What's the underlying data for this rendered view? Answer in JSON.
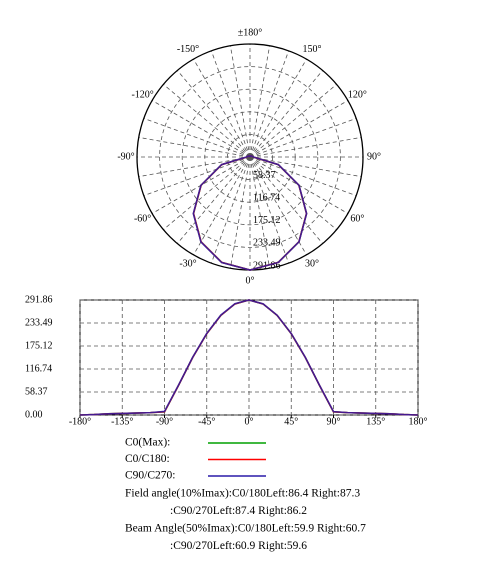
{
  "chart_data": [
    {
      "type": "polar",
      "angle_ticks": [
        {
          "value": 180,
          "label": "±180°"
        },
        {
          "value": 150,
          "label": "150°"
        },
        {
          "value": 120,
          "label": "120°"
        },
        {
          "value": 90,
          "label": "90°"
        },
        {
          "value": 60,
          "label": "60°"
        },
        {
          "value": 30,
          "label": "30°"
        },
        {
          "value": 0,
          "label": "0°"
        },
        {
          "value": -30,
          "label": "-30°"
        },
        {
          "value": -60,
          "label": "-60°"
        },
        {
          "value": -90,
          "label": "-90°"
        },
        {
          "value": -120,
          "label": "-120°"
        },
        {
          "value": -150,
          "label": "-150°"
        }
      ],
      "rlim": [
        0,
        291.86
      ],
      "rticks": [
        58.37,
        116.74,
        175.12,
        233.49,
        291.86
      ],
      "grid": true,
      "x": [
        -180,
        -165,
        -150,
        -135,
        -120,
        -105,
        -90,
        -75,
        -60,
        -45,
        -30,
        -15,
        0,
        15,
        30,
        45,
        60,
        75,
        90,
        105,
        120,
        135,
        150,
        165,
        180
      ],
      "series": [
        {
          "name": "C0(Max):",
          "color": "#00a000",
          "values": [
            0,
            1,
            3,
            4,
            5,
            6,
            8,
            75.5,
            145.9,
            206.4,
            252.8,
            281.9,
            291.86,
            281.9,
            252.8,
            206.4,
            145.9,
            75.5,
            8,
            6,
            5,
            4,
            3,
            1,
            0
          ]
        },
        {
          "name": "C0/C180:",
          "color": "#ff0000",
          "values": [
            0,
            1,
            3,
            4,
            5,
            6,
            8,
            75.5,
            145.9,
            206.4,
            252.8,
            281.9,
            291.86,
            281.9,
            252.8,
            206.4,
            145.9,
            75.5,
            8,
            6,
            5,
            4,
            3,
            1,
            0
          ]
        },
        {
          "name": "C90/C270:",
          "color": "#2a1aa8",
          "values": [
            0,
            1,
            3,
            4,
            5,
            6,
            9,
            76,
            146.5,
            207,
            253.5,
            282.3,
            291.86,
            282,
            253,
            206.8,
            146.2,
            75.8,
            8.5,
            6,
            5,
            4,
            3,
            1,
            0
          ]
        }
      ]
    },
    {
      "type": "line",
      "xlim": [
        -180,
        180
      ],
      "xticks": [
        {
          "value": -180,
          "label": "-180°"
        },
        {
          "value": -135,
          "label": "-135°"
        },
        {
          "value": -90,
          "label": "-90°"
        },
        {
          "value": -45,
          "label": "-45°"
        },
        {
          "value": 0,
          "label": "0°"
        },
        {
          "value": 45,
          "label": "45°"
        },
        {
          "value": 90,
          "label": "90°"
        },
        {
          "value": 135,
          "label": "135°"
        },
        {
          "value": 180,
          "label": "180°"
        }
      ],
      "ylim": [
        0,
        291.86
      ],
      "yticks": [
        {
          "value": 0,
          "label": "0.00"
        },
        58.37,
        116.74,
        175.12,
        233.49,
        291.86
      ],
      "grid": true,
      "x": [
        -180,
        -165,
        -150,
        -135,
        -120,
        -105,
        -90,
        -75,
        -60,
        -45,
        -30,
        -15,
        0,
        15,
        30,
        45,
        60,
        75,
        90,
        105,
        120,
        135,
        150,
        165,
        180
      ],
      "series": [
        {
          "name": "C0(Max):",
          "color": "#00a000",
          "values": [
            0,
            1,
            3,
            4,
            5,
            6,
            8,
            75.5,
            145.9,
            206.4,
            252.8,
            281.9,
            291.86,
            281.9,
            252.8,
            206.4,
            145.9,
            75.5,
            8,
            6,
            5,
            4,
            3,
            1,
            0
          ]
        },
        {
          "name": "C0/C180:",
          "color": "#ff0000",
          "values": [
            0,
            1,
            3,
            4,
            5,
            6,
            8,
            75.5,
            145.9,
            206.4,
            252.8,
            281.9,
            291.86,
            281.9,
            252.8,
            206.4,
            145.9,
            75.5,
            8,
            6,
            5,
            4,
            3,
            1,
            0
          ]
        },
        {
          "name": "C90/C270:",
          "color": "#2a1aa8",
          "values": [
            0,
            1,
            3,
            4,
            5,
            6,
            9,
            76,
            146.5,
            207,
            253.5,
            282.3,
            291.86,
            282,
            253,
            206.8,
            146.2,
            75.8,
            8.5,
            6,
            5,
            4,
            3,
            1,
            0
          ]
        }
      ],
      "annotations": [
        "Field angle(10%Imax):C0/180Left:86.4 Right:87.3",
        ":C90/270Left:87.4 Right:86.2",
        "Beam Angle(50%Imax):C0/180Left:59.9 Right:60.7",
        ":C90/270Left:60.9 Right:59.6"
      ]
    }
  ]
}
